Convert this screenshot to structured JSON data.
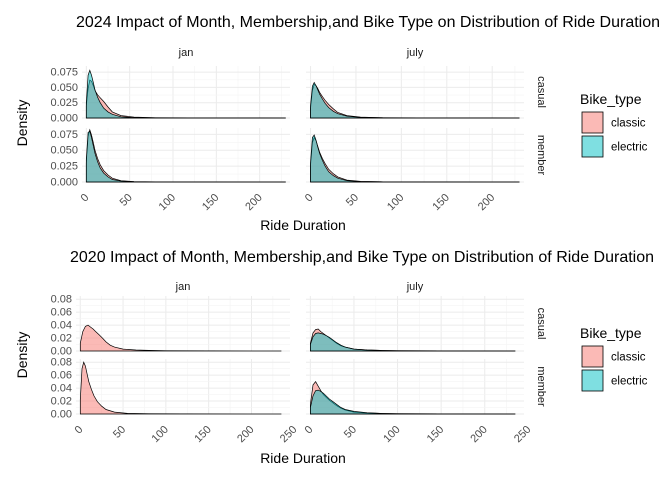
{
  "chart_data": [
    {
      "type": "area",
      "title": "2024 Impact of Month, Membership,and Bike Type on Distribution of Ride Duration",
      "xlabel": "Ride Duration",
      "ylabel": "Density",
      "x_ticks": [
        "0",
        "50",
        "100",
        "150",
        "200"
      ],
      "y_ticks": [
        "0.000",
        "0.025",
        "0.050",
        "0.075"
      ],
      "xlim": [
        -5,
        235
      ],
      "ylim": [
        0,
        0.085
      ],
      "facet_cols": [
        "jan",
        "july"
      ],
      "facet_rows": [
        "casual",
        "member"
      ],
      "legend": {
        "title": "Bike_type",
        "position": "right",
        "entries": [
          "classic",
          "electric"
        ]
      },
      "grid": true,
      "colors": {
        "classic": "#F8766D",
        "electric": "#00BFC4"
      },
      "panels": [
        {
          "col": "jan",
          "row": "casual",
          "series": [
            {
              "name": "classic",
              "x": [
                0,
                2,
                4,
                6,
                8,
                10,
                13,
                16,
                20,
                25,
                30,
                40,
                55,
                80,
                120,
                200,
                230
              ],
              "y": [
                0.02,
                0.048,
                0.062,
                0.06,
                0.053,
                0.045,
                0.038,
                0.033,
                0.027,
                0.018,
                0.01,
                0.004,
                0.0015,
                0.0005,
                0.0002,
                0.0001,
                0.0
              ]
            },
            {
              "name": "electric",
              "x": [
                0,
                2,
                4,
                6,
                8,
                10,
                13,
                16,
                20,
                25,
                30,
                40,
                55,
                80,
                120,
                200,
                230
              ],
              "y": [
                0.025,
                0.07,
                0.078,
                0.07,
                0.058,
                0.046,
                0.034,
                0.025,
                0.016,
                0.01,
                0.006,
                0.002,
                0.0007,
                0.0002,
                0.0001,
                0.0,
                0.0
              ]
            }
          ]
        },
        {
          "col": "july",
          "row": "casual",
          "series": [
            {
              "name": "classic",
              "x": [
                0,
                2,
                4,
                6,
                8,
                10,
                13,
                16,
                20,
                25,
                30,
                40,
                55,
                80,
                120,
                200,
                230
              ],
              "y": [
                0.015,
                0.045,
                0.055,
                0.053,
                0.048,
                0.042,
                0.035,
                0.029,
                0.022,
                0.015,
                0.009,
                0.004,
                0.0015,
                0.0005,
                0.0002,
                0.0001,
                0.0
              ]
            },
            {
              "name": "electric",
              "x": [
                0,
                2,
                4,
                6,
                8,
                10,
                13,
                16,
                20,
                25,
                30,
                40,
                55,
                80,
                120,
                200,
                230
              ],
              "y": [
                0.02,
                0.052,
                0.058,
                0.053,
                0.046,
                0.039,
                0.031,
                0.024,
                0.017,
                0.011,
                0.007,
                0.003,
                0.001,
                0.0003,
                0.0001,
                0.0,
                0.0
              ]
            }
          ]
        },
        {
          "col": "jan",
          "row": "member",
          "series": [
            {
              "name": "classic",
              "x": [
                0,
                2,
                4,
                6,
                8,
                10,
                13,
                16,
                20,
                25,
                30,
                40,
                55,
                80,
                120,
                200,
                230
              ],
              "y": [
                0.03,
                0.072,
                0.082,
                0.074,
                0.062,
                0.05,
                0.037,
                0.027,
                0.018,
                0.011,
                0.006,
                0.002,
                0.0006,
                0.0002,
                0.0001,
                0.0,
                0.0
              ]
            },
            {
              "name": "electric",
              "x": [
                0,
                2,
                4,
                6,
                8,
                10,
                13,
                16,
                20,
                25,
                30,
                40,
                55,
                80,
                120,
                200,
                230
              ],
              "y": [
                0.035,
                0.078,
                0.08,
                0.07,
                0.057,
                0.045,
                0.032,
                0.022,
                0.014,
                0.008,
                0.004,
                0.0015,
                0.0005,
                0.0001,
                0.0,
                0.0,
                0.0
              ]
            }
          ]
        },
        {
          "col": "july",
          "row": "member",
          "series": [
            {
              "name": "classic",
              "x": [
                0,
                2,
                4,
                6,
                8,
                10,
                13,
                16,
                20,
                25,
                30,
                40,
                55,
                80,
                120,
                200,
                230
              ],
              "y": [
                0.025,
                0.062,
                0.07,
                0.065,
                0.056,
                0.047,
                0.037,
                0.029,
                0.02,
                0.013,
                0.008,
                0.003,
                0.001,
                0.0003,
                0.0001,
                0.0,
                0.0
              ]
            },
            {
              "name": "electric",
              "x": [
                0,
                2,
                4,
                6,
                8,
                10,
                13,
                16,
                20,
                25,
                30,
                40,
                55,
                80,
                120,
                200,
                230
              ],
              "y": [
                0.03,
                0.07,
                0.074,
                0.066,
                0.055,
                0.045,
                0.034,
                0.025,
                0.016,
                0.01,
                0.006,
                0.002,
                0.0007,
                0.0002,
                0.0001,
                0.0,
                0.0
              ]
            }
          ]
        }
      ]
    },
    {
      "type": "area",
      "title": "2020 Impact of Month, Membership,and Bike Type on Distribution of Ride Duration",
      "xlabel": "Ride Duration",
      "ylabel": "Density",
      "x_ticks": [
        "0",
        "50",
        "100",
        "150",
        "200",
        "250"
      ],
      "y_ticks": [
        "0.00",
        "0.02",
        "0.04",
        "0.06",
        "0.08"
      ],
      "xlim": [
        -5,
        245
      ],
      "ylim": [
        0,
        0.085
      ],
      "facet_cols": [
        "jan",
        "july"
      ],
      "facet_rows": [
        "casual",
        "member"
      ],
      "legend": {
        "title": "Bike_type",
        "position": "right",
        "entries": [
          "classic",
          "electric"
        ]
      },
      "grid": true,
      "colors": {
        "classic": "#F8766D",
        "electric": "#00BFC4"
      },
      "panels": [
        {
          "col": "jan",
          "row": "casual",
          "series": [
            {
              "name": "classic",
              "x": [
                0,
                3,
                6,
                9,
                12,
                15,
                18,
                22,
                26,
                30,
                35,
                40,
                50,
                65,
                80,
                100,
                150,
                235
              ],
              "y": [
                0.012,
                0.03,
                0.038,
                0.04,
                0.037,
                0.034,
                0.03,
                0.025,
                0.02,
                0.014,
                0.009,
                0.006,
                0.003,
                0.0015,
                0.001,
                0.0005,
                0.0002,
                0.0
              ]
            }
          ]
        },
        {
          "col": "july",
          "row": "casual",
          "series": [
            {
              "name": "classic",
              "x": [
                0,
                3,
                6,
                9,
                12,
                15,
                18,
                22,
                26,
                30,
                35,
                40,
                50,
                65,
                80,
                100,
                150,
                235
              ],
              "y": [
                0.012,
                0.028,
                0.033,
                0.034,
                0.03,
                0.027,
                0.024,
                0.02,
                0.016,
                0.012,
                0.008,
                0.006,
                0.003,
                0.0015,
                0.001,
                0.0005,
                0.0003,
                0.0
              ]
            },
            {
              "name": "electric",
              "x": [
                0,
                3,
                6,
                9,
                12,
                15,
                18,
                22,
                26,
                30,
                35,
                40,
                50,
                65,
                80,
                100,
                150,
                235
              ],
              "y": [
                0.01,
                0.022,
                0.027,
                0.028,
                0.027,
                0.026,
                0.024,
                0.021,
                0.017,
                0.013,
                0.009,
                0.006,
                0.003,
                0.0015,
                0.001,
                0.0005,
                0.0002,
                0.0
              ]
            }
          ]
        },
        {
          "col": "jan",
          "row": "member",
          "series": [
            {
              "name": "classic",
              "x": [
                0,
                2,
                4,
                6,
                8,
                10,
                13,
                16,
                20,
                25,
                30,
                40,
                55,
                80,
                120,
                200,
                235
              ],
              "y": [
                0.022,
                0.07,
                0.08,
                0.074,
                0.062,
                0.05,
                0.038,
                0.028,
                0.019,
                0.012,
                0.007,
                0.003,
                0.001,
                0.0004,
                0.0001,
                0.0,
                0.0
              ]
            }
          ]
        },
        {
          "col": "july",
          "row": "member",
          "series": [
            {
              "name": "classic",
              "x": [
                0,
                3,
                6,
                9,
                12,
                15,
                18,
                22,
                26,
                30,
                35,
                40,
                50,
                65,
                80,
                100,
                150,
                235
              ],
              "y": [
                0.015,
                0.045,
                0.05,
                0.043,
                0.036,
                0.03,
                0.026,
                0.021,
                0.017,
                0.013,
                0.009,
                0.006,
                0.003,
                0.0015,
                0.001,
                0.0005,
                0.0002,
                0.0
              ]
            },
            {
              "name": "electric",
              "x": [
                0,
                3,
                6,
                9,
                12,
                15,
                18,
                22,
                26,
                30,
                35,
                40,
                50,
                65,
                80,
                100,
                150,
                235
              ],
              "y": [
                0.01,
                0.028,
                0.036,
                0.037,
                0.035,
                0.032,
                0.028,
                0.023,
                0.019,
                0.015,
                0.01,
                0.007,
                0.004,
                0.002,
                0.001,
                0.0005,
                0.0002,
                0.0
              ]
            }
          ]
        }
      ]
    }
  ]
}
